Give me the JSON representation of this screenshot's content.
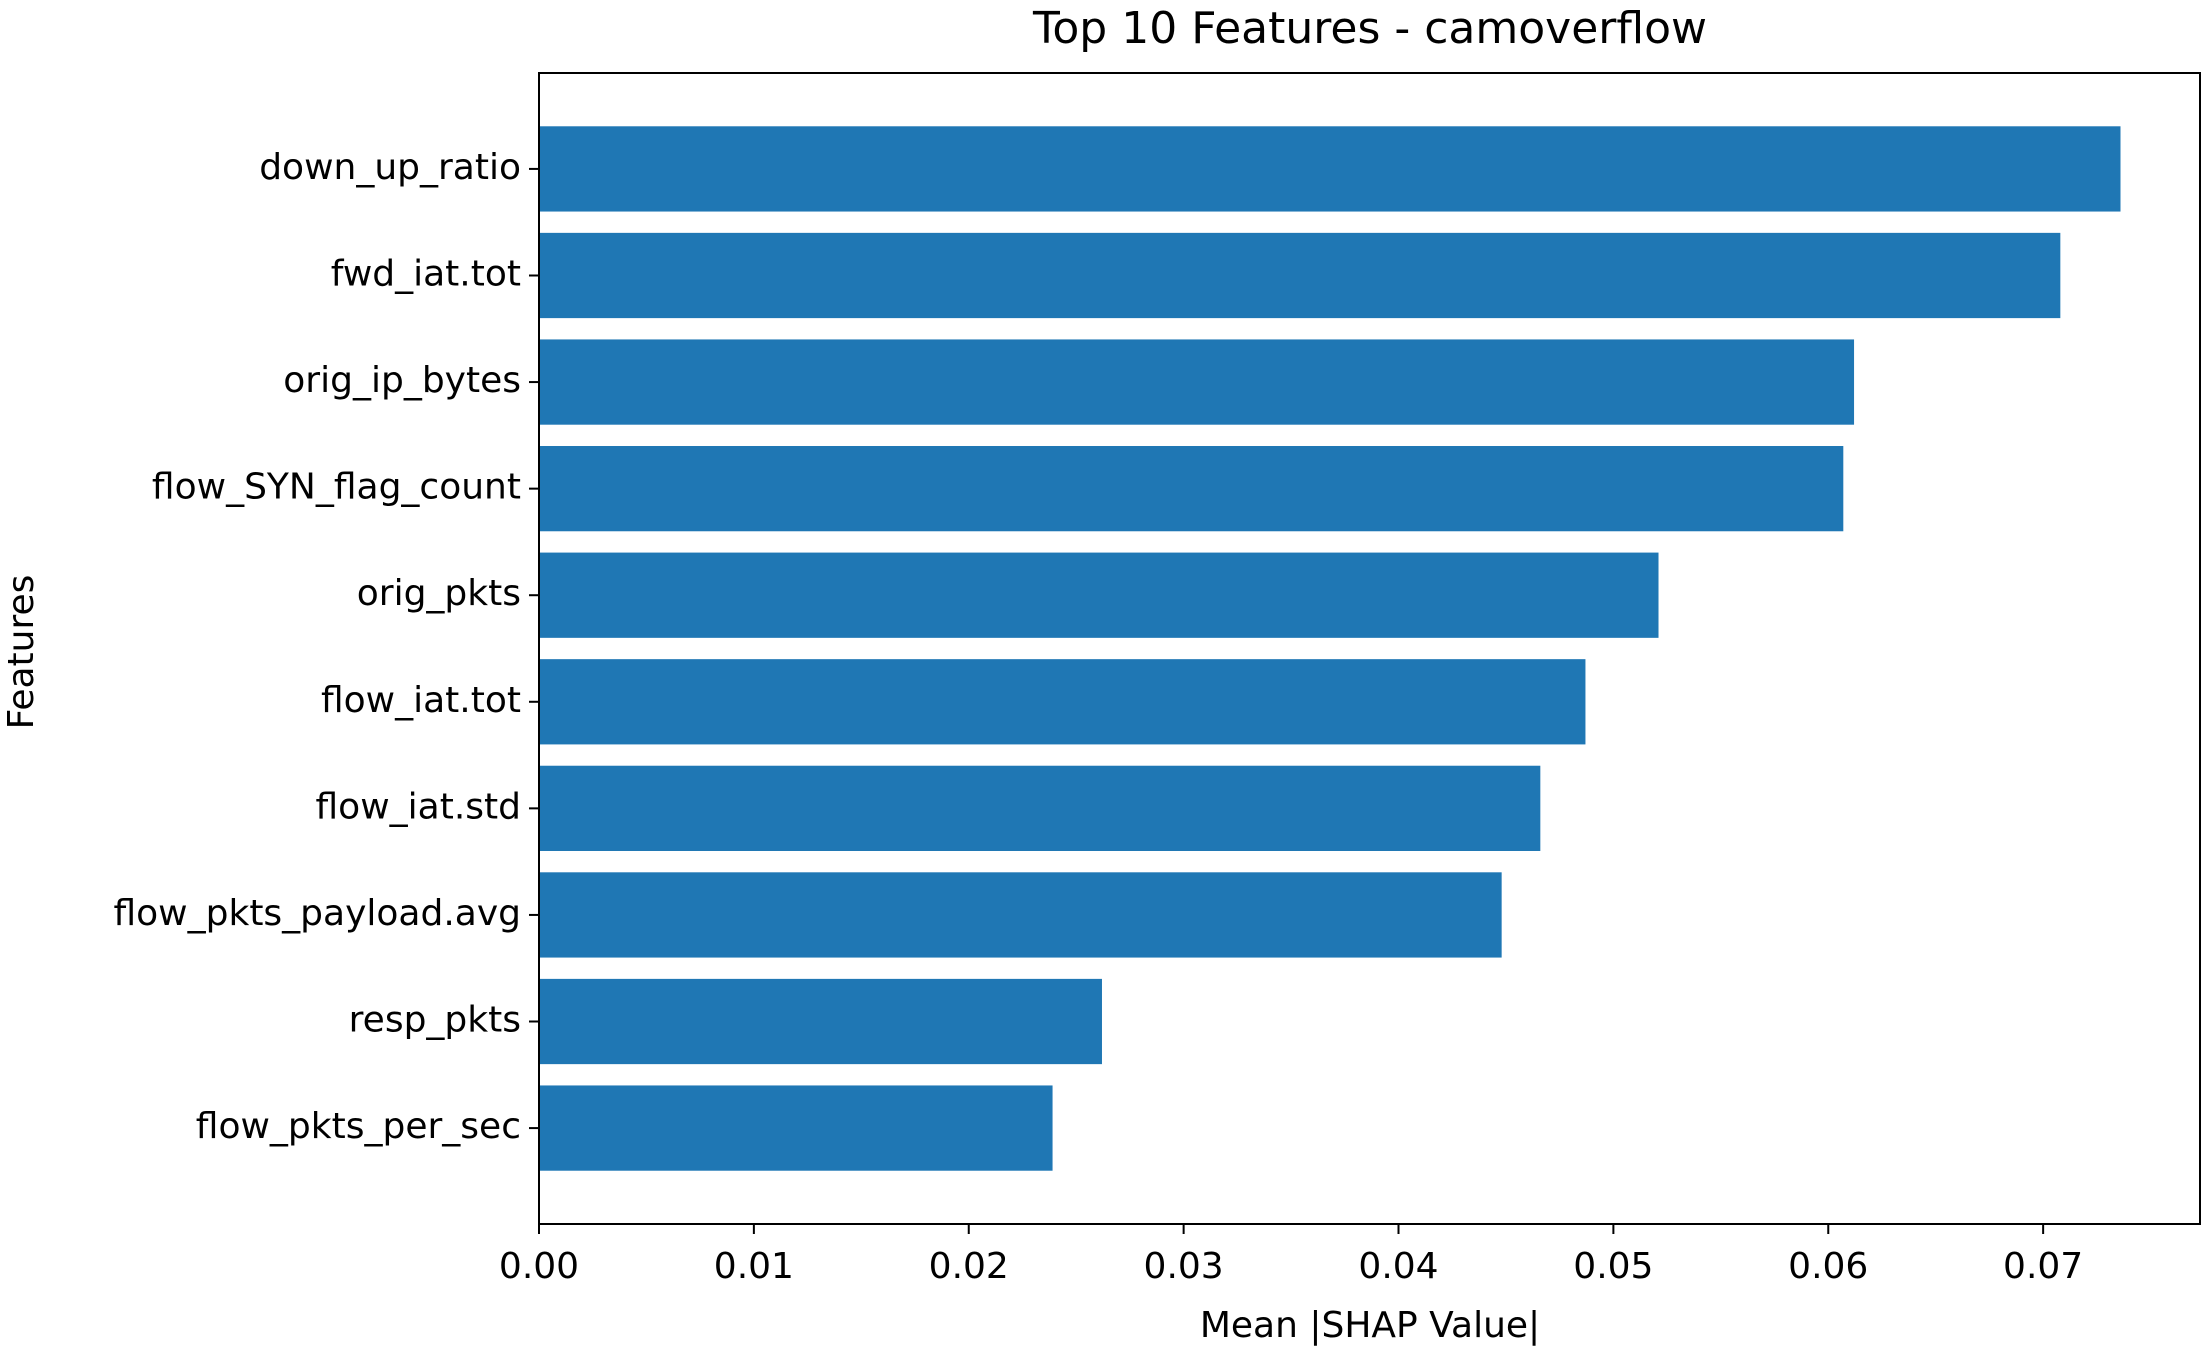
{
  "chart_data": {
    "type": "barh",
    "title": "Top 10 Features - camoverflow",
    "x_label": "Mean |SHAP Value|",
    "y_label": "Features",
    "categories": [
      "down_up_ratio",
      "fwd_iat.tot",
      "orig_ip_bytes",
      "flow_SYN_flag_count",
      "orig_pkts",
      "flow_iat.tot",
      "flow_iat.std",
      "flow_pkts_payload.avg",
      "resp_pkts",
      "flow_pkts_per_sec"
    ],
    "values": [
      0.0736,
      0.0708,
      0.0612,
      0.0607,
      0.0521,
      0.0487,
      0.0466,
      0.0448,
      0.0262,
      0.0239
    ],
    "color": "#1f77b4",
    "xlim": [
      0,
      0.0773
    ],
    "xticks": [
      {
        "value": 0,
        "label": "0.00"
      },
      0.01,
      0.02,
      0.03,
      0.04,
      0.05,
      0.06,
      0.07
    ],
    "grid": false
  }
}
